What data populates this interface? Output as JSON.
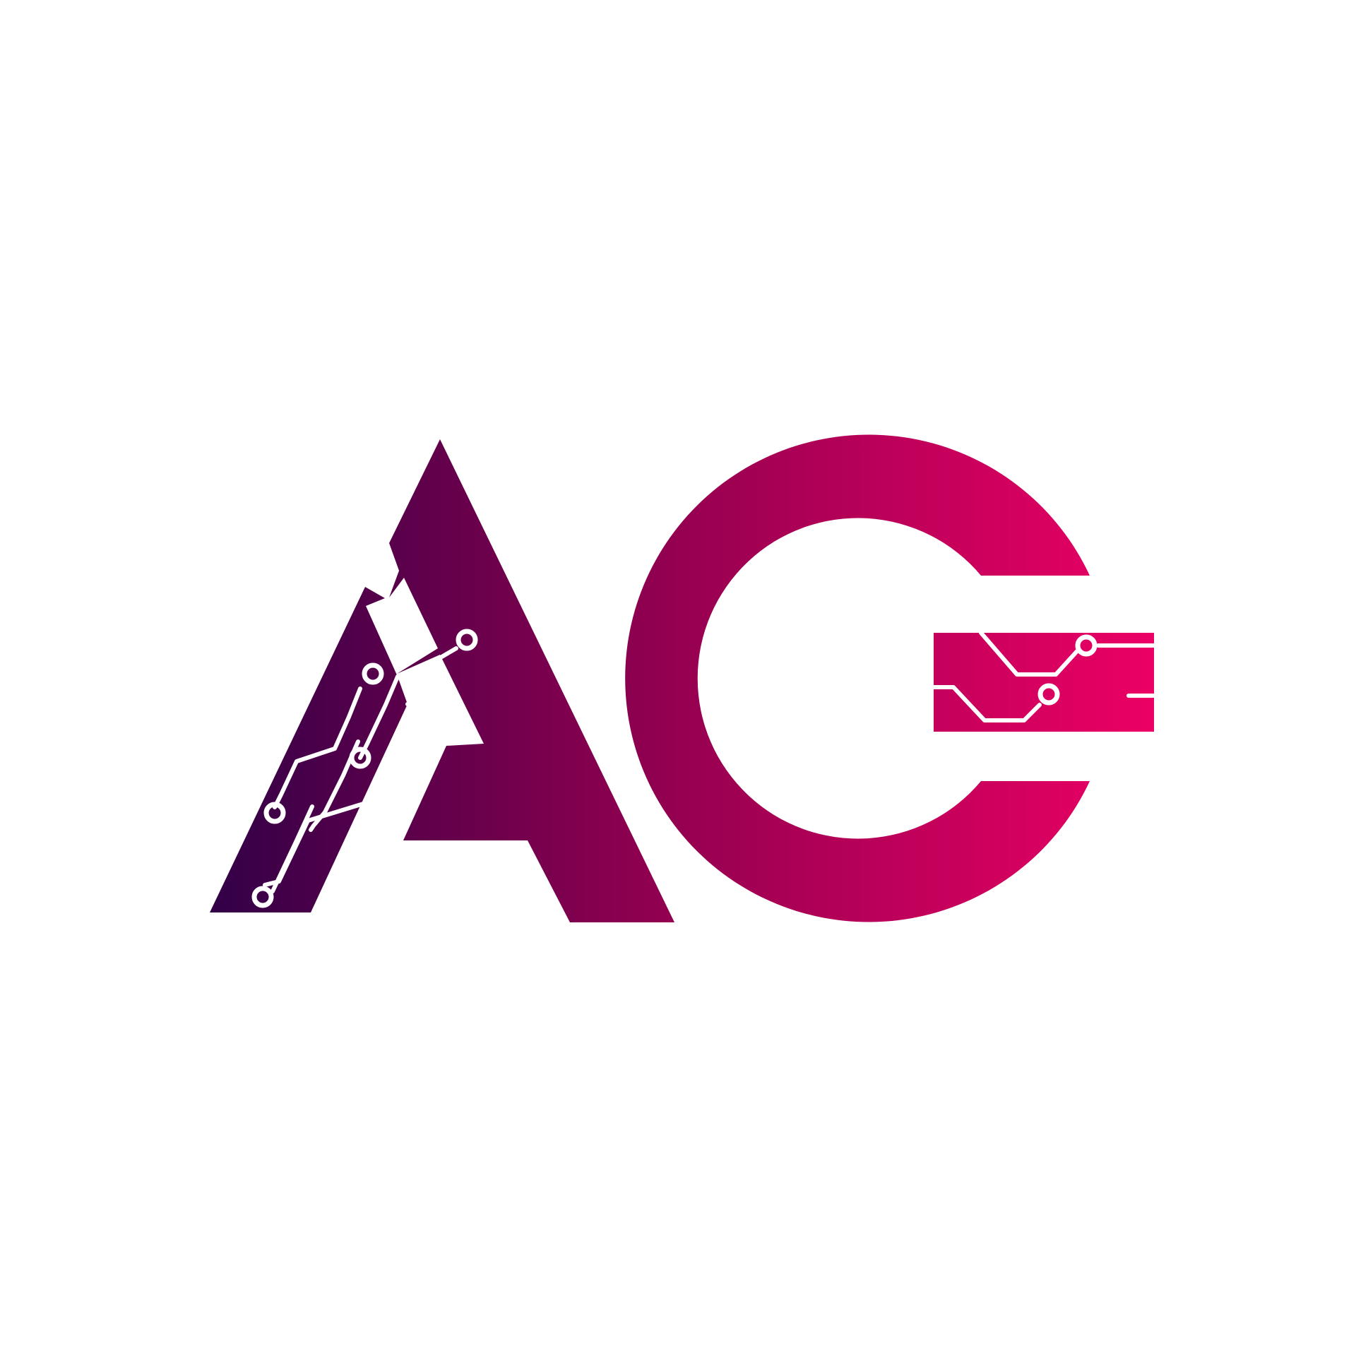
{
  "logo": {
    "letters": "AG",
    "gradient_start": "#320047",
    "gradient_mid": "#960050",
    "gradient_end": "#EC0065",
    "circuit_color": "#FFFFFF",
    "background": "#FFFFFF"
  }
}
